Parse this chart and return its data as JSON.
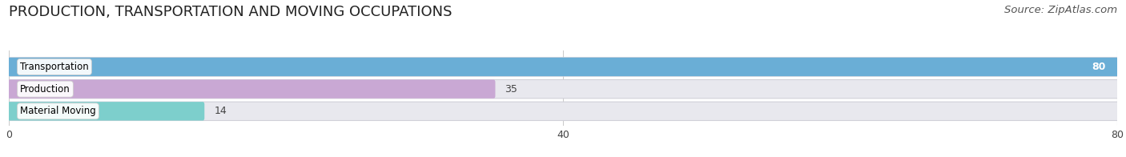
{
  "title": "PRODUCTION, TRANSPORTATION AND MOVING OCCUPATIONS",
  "source": "Source: ZipAtlas.com",
  "categories": [
    "Transportation",
    "Production",
    "Material Moving"
  ],
  "values": [
    80,
    35,
    14
  ],
  "bar_colors": [
    "#6aaed6",
    "#c9a8d4",
    "#7dcfcc"
  ],
  "xlim": [
    0,
    80
  ],
  "xticks": [
    0,
    40,
    80
  ],
  "title_fontsize": 13,
  "source_fontsize": 9.5,
  "label_fontsize": 8.5,
  "value_fontsize": 9,
  "background_color": "#ffffff",
  "bar_background": "#e8e8ee",
  "grid_color": "#cccccc"
}
